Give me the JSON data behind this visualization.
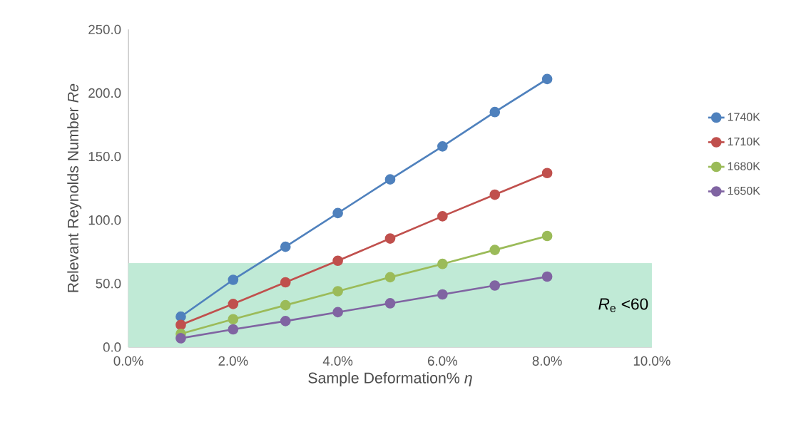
{
  "chart_data": {
    "type": "line",
    "xlabel": "Sample Deformation% *η*",
    "ylabel": "Relevant Reynolds Number *Re*",
    "x": [
      1,
      2,
      3,
      4,
      5,
      6,
      7,
      8
    ],
    "series": [
      {
        "name": "1740K",
        "color": "#4f81bd",
        "values": [
          24,
          53,
          79,
          105.5,
          132,
          158,
          185,
          211
        ]
      },
      {
        "name": "1710K",
        "color": "#c0504d",
        "values": [
          17.5,
          34,
          51,
          68,
          85.5,
          103,
          120,
          137
        ]
      },
      {
        "name": "1680K",
        "color": "#9bbb59",
        "values": [
          10.5,
          22,
          33,
          44,
          55,
          65.5,
          76.5,
          87.5
        ]
      },
      {
        "name": "1650K",
        "color": "#8064a2",
        "values": [
          7,
          14,
          20.5,
          27.5,
          34.5,
          41.5,
          48.5,
          55.5
        ]
      }
    ],
    "xlim": [
      0,
      10
    ],
    "ylim": [
      0,
      250
    ],
    "xticks": [
      {
        "value": 0,
        "label": "0.0%"
      },
      {
        "value": 2,
        "label": "2.0%"
      },
      {
        "value": 4,
        "label": "4.0%"
      },
      {
        "value": 6,
        "label": "6.0%"
      },
      {
        "value": 8,
        "label": "8.0%"
      },
      {
        "value": 10,
        "label": "10.0%"
      }
    ],
    "yticks": [
      {
        "value": 0,
        "label": "0.0"
      },
      {
        "value": 50,
        "label": "50.0"
      },
      {
        "value": 100,
        "label": "100.0"
      },
      {
        "value": 150,
        "label": "150.0"
      },
      {
        "value": 200,
        "label": "200.0"
      },
      {
        "value": 250,
        "label": "250.0"
      }
    ],
    "bands": [
      {
        "axis": "y",
        "from": 0,
        "to": 66,
        "label": "*R*$_{e}$ <60",
        "color": "#c0ead6"
      }
    ],
    "legend": "right",
    "marker": "circle",
    "line_style": "solid"
  }
}
